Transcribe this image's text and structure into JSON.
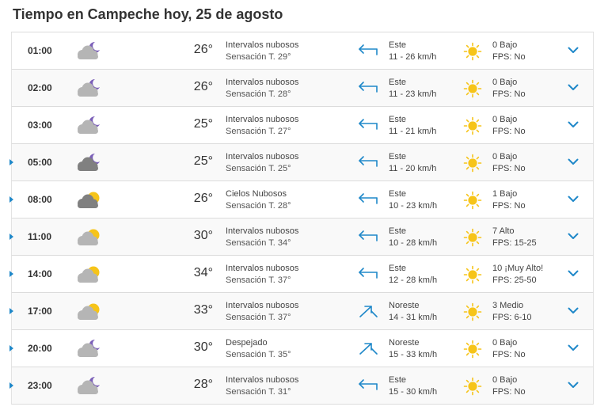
{
  "title": "Tiempo en Campeche hoy, 25 de agosto",
  "colors": {
    "accent": "#1f88c9",
    "sun": "#f6c419",
    "cloud": "#b5b5b5",
    "dark_cloud": "#808080",
    "moon": "#7b5fb8"
  },
  "rows": [
    {
      "time": "01:00",
      "icon": "cloud-moon-icon",
      "temp": "26°",
      "desc": "Intervalos nubosos",
      "feels": "Sensación T. 29°",
      "wind_dir": "Este",
      "wind_speed": "11 - 26 km/h",
      "uv": "0 Bajo",
      "fps": "FPS: No",
      "expandable": false
    },
    {
      "time": "02:00",
      "icon": "cloud-moon-icon",
      "temp": "26°",
      "desc": "Intervalos nubosos",
      "feels": "Sensación T. 28°",
      "wind_dir": "Este",
      "wind_speed": "11 - 23 km/h",
      "uv": "0 Bajo",
      "fps": "FPS: No",
      "expandable": false
    },
    {
      "time": "03:00",
      "icon": "cloud-moon-icon",
      "temp": "25°",
      "desc": "Intervalos nubosos",
      "feels": "Sensación T. 27°",
      "wind_dir": "Este",
      "wind_speed": "11 - 21 km/h",
      "uv": "0 Bajo",
      "fps": "FPS: No",
      "expandable": false
    },
    {
      "time": "05:00",
      "icon": "dark-cloud-moon-icon",
      "temp": "25°",
      "desc": "Intervalos nubosos",
      "feels": "Sensación T. 25°",
      "wind_dir": "Este",
      "wind_speed": "11 - 20 km/h",
      "uv": "0 Bajo",
      "fps": "FPS: No",
      "expandable": true
    },
    {
      "time": "08:00",
      "icon": "dark-cloud-sun-icon",
      "temp": "26°",
      "desc": "Cielos Nubosos",
      "feels": "Sensación T. 28°",
      "wind_dir": "Este",
      "wind_speed": "10 - 23 km/h",
      "uv": "1 Bajo",
      "fps": "FPS: No",
      "expandable": true
    },
    {
      "time": "11:00",
      "icon": "cloud-sun-icon",
      "temp": "30°",
      "desc": "Intervalos nubosos",
      "feels": "Sensación T. 34°",
      "wind_dir": "Este",
      "wind_speed": "10 - 28 km/h",
      "uv": "7 Alto",
      "fps": "FPS: 15-25",
      "expandable": true
    },
    {
      "time": "14:00",
      "icon": "cloud-sun-icon",
      "temp": "34°",
      "desc": "Intervalos nubosos",
      "feels": "Sensación T. 37°",
      "wind_dir": "Este",
      "wind_speed": "12 - 28 km/h",
      "uv": "10 ¡Muy Alto!",
      "fps": "FPS: 25-50",
      "expandable": true
    },
    {
      "time": "17:00",
      "icon": "cloud-sun-icon",
      "temp": "33°",
      "desc": "Intervalos nubosos",
      "feels": "Sensación T. 37°",
      "wind_dir": "Noreste",
      "wind_speed": "14 - 31 km/h",
      "uv": "3 Medio",
      "fps": "FPS: 6-10",
      "expandable": true
    },
    {
      "time": "20:00",
      "icon": "cloud-moon-icon",
      "temp": "30°",
      "desc": "Despejado",
      "feels": "Sensación T. 35°",
      "wind_dir": "Noreste",
      "wind_speed": "15 - 33 km/h",
      "uv": "0 Bajo",
      "fps": "FPS: No",
      "expandable": true
    },
    {
      "time": "23:00",
      "icon": "cloud-moon-icon",
      "temp": "28°",
      "desc": "Intervalos nubosos",
      "feels": "Sensación T. 31°",
      "wind_dir": "Este",
      "wind_speed": "15 - 30 km/h",
      "uv": "0 Bajo",
      "fps": "FPS: No",
      "expandable": true
    }
  ]
}
